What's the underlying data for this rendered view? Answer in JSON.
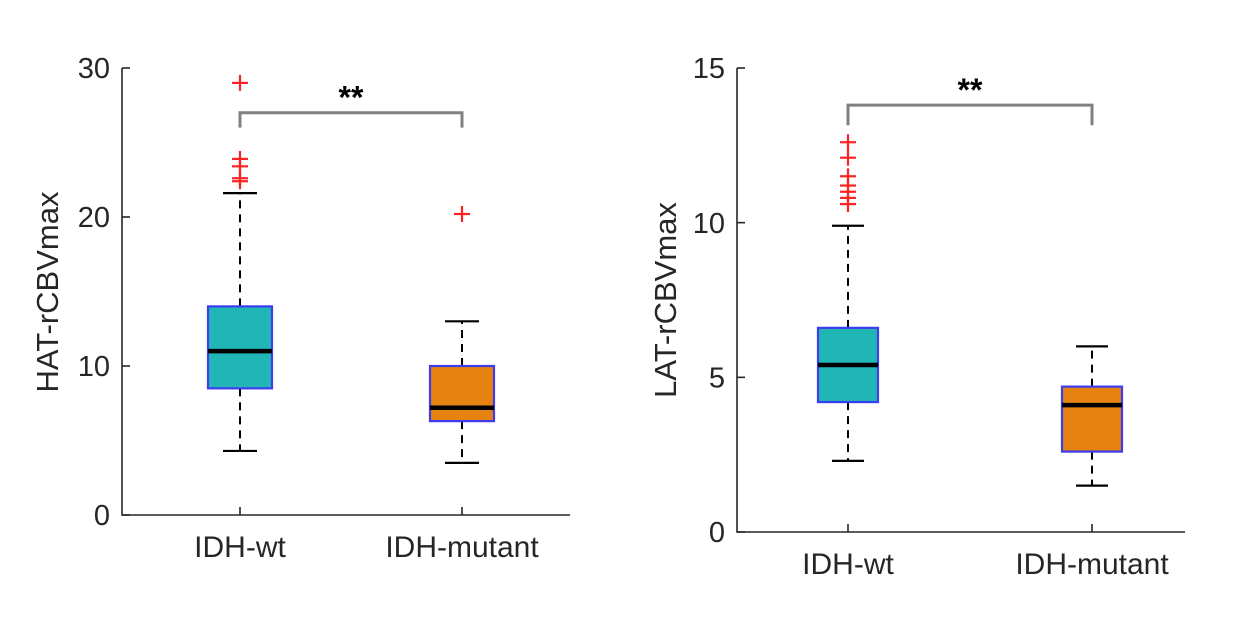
{
  "figure_title": "",
  "style_colors": {
    "axis": "#262626",
    "box_edge": "#3c3cf0",
    "median": "#000000",
    "whisker": "#000000",
    "cap": "#000000",
    "outlier": "#ff2222",
    "bracket": "#808080",
    "teal_fill": "#22b5b5",
    "orange_fill": "#e6820f",
    "background": "#ffffff"
  },
  "chart_data": [
    {
      "type": "boxplot",
      "title": "",
      "ylabel": "HAT-rCBVmax",
      "xlabel": "",
      "ylim": [
        0,
        30
      ],
      "yticks": [
        0,
        10,
        20,
        30
      ],
      "grid": false,
      "categories": [
        "IDH-wt",
        "IDH-mutant"
      ],
      "series": [
        {
          "name": "IDH-wt",
          "whisker_low": 4.3,
          "q1": 8.5,
          "median": 11.0,
          "q3": 14.0,
          "whisker_high": 21.6,
          "outliers": [
            22.4,
            22.6,
            23.4,
            23.9,
            29.0
          ],
          "fill_color": "#22b5b5"
        },
        {
          "name": "IDH-mutant",
          "whisker_low": 3.5,
          "q1": 6.3,
          "median": 7.2,
          "q3": 10.0,
          "whisker_high": 13.0,
          "outliers": [
            20.2
          ],
          "fill_color": "#e6820f"
        }
      ],
      "significance": {
        "label": "**",
        "bar_y": 27.0,
        "tick_drop": 1.0
      }
    },
    {
      "type": "boxplot",
      "title": "",
      "ylabel": "LAT-rCBVmax",
      "xlabel": "",
      "ylim": [
        0,
        15
      ],
      "yticks": [
        0,
        5,
        10,
        15
      ],
      "grid": false,
      "categories": [
        "IDH-wt",
        "IDH-mutant"
      ],
      "series": [
        {
          "name": "IDH-wt",
          "whisker_low": 2.3,
          "q1": 4.2,
          "median": 5.4,
          "q3": 6.6,
          "whisker_high": 9.9,
          "outliers": [
            10.6,
            10.8,
            11.0,
            11.2,
            11.5,
            12.1,
            12.6
          ],
          "fill_color": "#22b5b5"
        },
        {
          "name": "IDH-mutant",
          "whisker_low": 1.5,
          "q1": 2.6,
          "median": 4.1,
          "q3": 4.7,
          "whisker_high": 6.0,
          "outliers": [],
          "fill_color": "#e6820f"
        }
      ],
      "significance": {
        "label": "**",
        "bar_y": 13.8,
        "tick_drop": 0.65
      }
    }
  ]
}
